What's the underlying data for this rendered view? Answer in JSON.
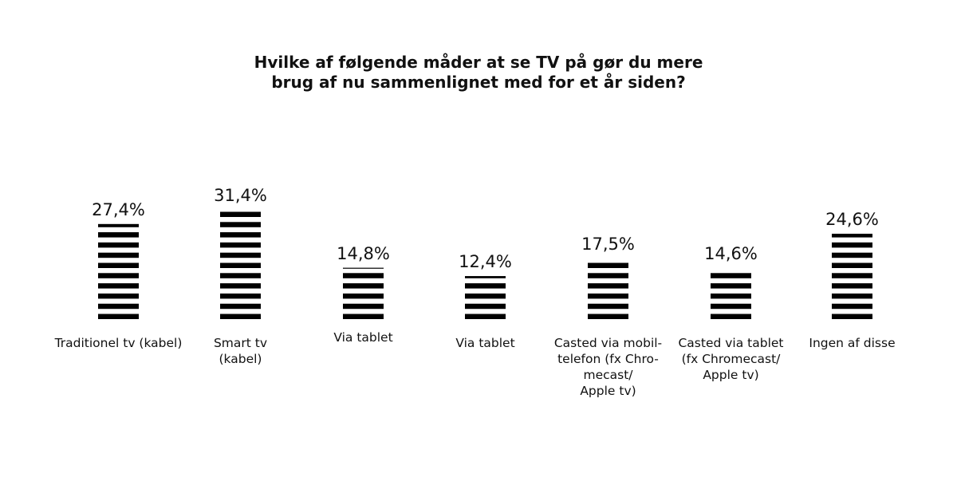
{
  "chart_data": {
    "type": "bar",
    "title_lines": [
      "Hvilke af følgende måder at se TV på gør du mere",
      "brug af nu sammenlignet med for et år siden?"
    ],
    "categories": [
      [
        "Traditionel tv (kabel)"
      ],
      [
        "Smart tv",
        "(kabel)"
      ],
      [
        "Via tablet"
      ],
      [
        "Via tablet"
      ],
      [
        "Casted via mobil-",
        "telefon (fx Chro-",
        "mecast/",
        "Apple tv)"
      ],
      [
        "Casted via tablet",
        "(fx Chromecast/",
        "Apple tv)"
      ],
      [
        "Ingen af disse"
      ]
    ],
    "values": [
      27.4,
      31.4,
      14.8,
      12.4,
      17.5,
      14.6,
      24.6
    ],
    "value_labels": [
      "27,4%",
      "31,4%",
      "14,8%",
      "12,4%",
      "17,5%",
      "14,6%",
      "24,6%"
    ],
    "unit": "%",
    "xlabel": "",
    "ylabel": "",
    "grid": false,
    "bar_color": "#000000"
  }
}
